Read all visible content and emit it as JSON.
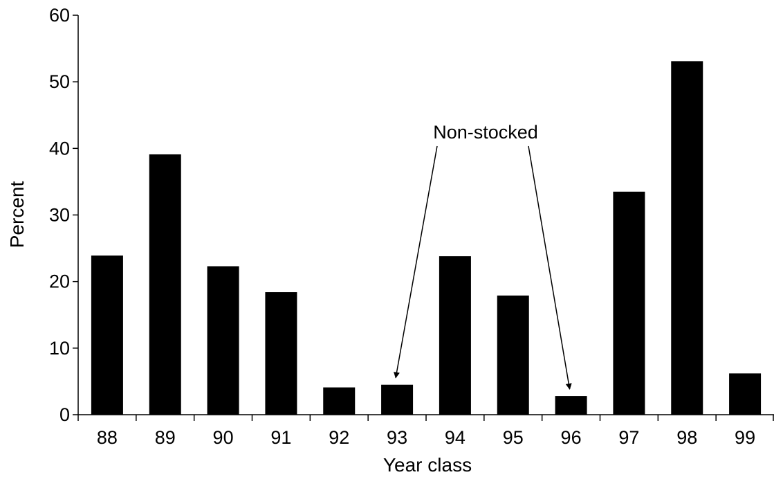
{
  "chart_data": {
    "type": "bar",
    "title": "",
    "xlabel": "Year class",
    "ylabel": "Percent",
    "categories": [
      "88",
      "89",
      "90",
      "91",
      "92",
      "93",
      "94",
      "95",
      "96",
      "97",
      "98",
      "99"
    ],
    "values": [
      23.9,
      39.1,
      22.3,
      18.4,
      4.1,
      4.5,
      23.8,
      17.9,
      2.8,
      33.5,
      53.1,
      6.2
    ],
    "ylim": [
      0,
      60
    ],
    "yticks": [
      "0",
      "10",
      "20",
      "30",
      "40",
      "50",
      "60"
    ],
    "grid": false,
    "bar_color": "#000000",
    "annotation": {
      "text": "Non-stocked",
      "targets": [
        "93",
        "96"
      ]
    }
  }
}
